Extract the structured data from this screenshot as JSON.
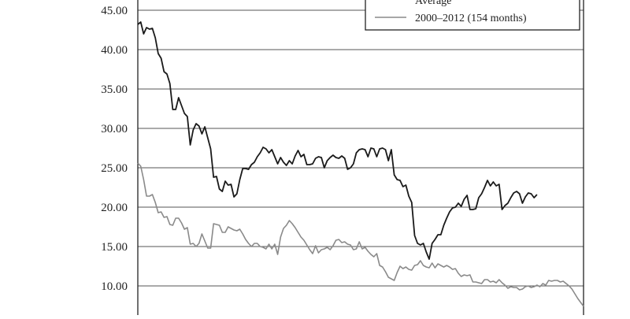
{
  "chart_data": {
    "type": "line",
    "y_ticks": [
      "10.00",
      "15.00",
      "20.00",
      "25.00",
      "30.00",
      "35.00",
      "40.00",
      "45.00"
    ],
    "y_tick_values": [
      10,
      15,
      20,
      25,
      30,
      35,
      40,
      45
    ],
    "ylim": [
      6.3,
      46.3
    ],
    "grid": true,
    "legend_placement": "top-right",
    "legend": [
      "Average",
      "2000–2012 (154 months)"
    ],
    "colors": {
      "series_dark": "#1a1a1a",
      "series_light": "#8a8a8a",
      "grid": "#555555",
      "frame": "#222222"
    },
    "series": [
      {
        "name": "Average",
        "values": [
          43.2,
          43.5,
          42.0,
          42.8,
          42.6,
          42.7,
          41.5,
          39.5,
          38.9,
          37.2,
          36.9,
          35.7,
          32.4,
          32.4,
          33.9,
          32.9,
          31.9,
          31.5,
          27.9,
          29.8,
          30.6,
          30.3,
          29.3,
          30.2,
          28.8,
          27.4,
          23.8,
          23.9,
          22.3,
          22.0,
          23.3,
          22.8,
          22.9,
          21.3,
          21.7,
          23.5,
          24.9,
          24.9,
          24.8,
          25.4,
          25.7,
          26.4,
          26.9,
          27.6,
          27.4,
          26.9,
          27.3,
          26.4,
          25.5,
          26.3,
          25.7,
          25.3,
          25.9,
          25.5,
          26.5,
          27.2,
          26.4,
          26.7,
          25.4,
          25.4,
          25.5,
          26.2,
          26.4,
          26.3,
          25.0,
          25.9,
          26.3,
          26.6,
          26.3,
          26.2,
          26.5,
          26.2,
          24.8,
          25.0,
          25.5,
          26.9,
          27.3,
          27.4,
          27.3,
          26.4,
          27.5,
          27.4,
          26.4,
          27.4,
          27.5,
          27.3,
          25.9,
          27.3,
          24.1,
          23.5,
          23.4,
          22.6,
          22.8,
          21.4,
          20.6,
          16.4,
          15.4,
          15.2,
          15.4,
          14.3,
          13.4,
          15.4,
          15.9,
          16.5,
          16.5,
          17.7,
          18.6,
          19.4,
          19.9,
          20.0,
          20.5,
          20.1,
          21.0,
          21.5,
          19.7,
          19.7,
          19.8,
          21.2,
          21.7,
          22.5,
          23.4,
          22.7,
          23.2,
          22.7,
          22.9,
          19.7,
          20.2,
          20.5,
          21.2,
          21.8,
          22.0,
          21.7,
          20.5,
          21.3,
          21.8,
          21.7,
          21.2,
          21.6
        ]
      },
      {
        "name": "2000–2012 (154 months)",
        "values": [
          25.6,
          25.2,
          23.5,
          21.4,
          21.4,
          21.6,
          20.6,
          19.3,
          19.4,
          18.7,
          18.8,
          17.8,
          17.7,
          18.6,
          18.6,
          18.0,
          17.2,
          17.4,
          15.3,
          15.4,
          15.0,
          15.4,
          16.6,
          15.7,
          14.8,
          14.8,
          17.9,
          17.8,
          17.7,
          16.8,
          16.8,
          17.5,
          17.3,
          17.1,
          17.0,
          17.2,
          16.6,
          15.9,
          15.4,
          15.0,
          15.4,
          15.4,
          15.0,
          14.9,
          14.7,
          15.3,
          14.7,
          15.3,
          14.0,
          16.2,
          17.3,
          17.7,
          18.3,
          17.9,
          17.4,
          16.8,
          16.2,
          15.8,
          15.2,
          14.6,
          14.1,
          15.1,
          14.2,
          14.6,
          14.7,
          14.9,
          14.6,
          15.1,
          15.8,
          15.9,
          15.5,
          15.6,
          15.3,
          15.2,
          14.6,
          14.7,
          15.6,
          14.7,
          14.9,
          14.4,
          14.0,
          13.7,
          14.1,
          12.6,
          12.4,
          11.8,
          11.1,
          10.9,
          10.7,
          11.7,
          12.5,
          12.2,
          12.4,
          12.1,
          12.0,
          12.6,
          12.7,
          13.2,
          12.6,
          12.4,
          12.3,
          12.9,
          12.3,
          12.8,
          12.6,
          12.4,
          12.6,
          12.4,
          12.1,
          12.2,
          11.6,
          11.2,
          11.4,
          11.3,
          11.4,
          10.5,
          10.5,
          10.4,
          10.3,
          10.8,
          10.8,
          10.5,
          10.6,
          10.4,
          10.8,
          10.4,
          10.1,
          9.7,
          9.9,
          9.8,
          9.8,
          9.5,
          9.6,
          9.9,
          10.0,
          9.8,
          9.9,
          10.1,
          9.9,
          10.3,
          10.1,
          10.7,
          10.6,
          10.7,
          10.7,
          10.5,
          10.6,
          10.3,
          10.0,
          9.6,
          9.0,
          8.4,
          7.9,
          7.4
        ]
      }
    ]
  }
}
